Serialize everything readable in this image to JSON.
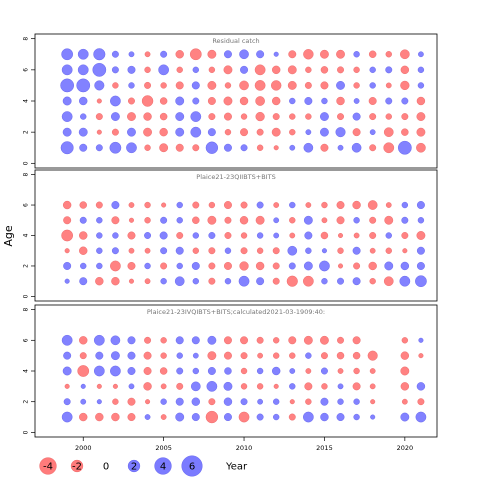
{
  "chart_data": {
    "type": "scatter",
    "ylabel": "Age",
    "xlabel": "Year",
    "xlim": [
      1997,
      2022
    ],
    "x_ticks": [
      2000,
      2005,
      2010,
      2015,
      2020
    ],
    "ylim": [
      -0.3,
      8.3
    ],
    "y_ticks": [
      0,
      2,
      4,
      6,
      8
    ],
    "colors": {
      "positive": "#7b7bff",
      "negative": "#ff7b7b"
    },
    "legend": {
      "values": [
        -4,
        -2,
        0,
        2,
        4,
        6
      ],
      "labels": [
        "-4",
        "-2",
        "0",
        "2",
        "4",
        "6"
      ],
      "title": "Year"
    },
    "panels": [
      {
        "title": "Residual catch",
        "ages": [
          1,
          2,
          3,
          4,
          5,
          6,
          7
        ],
        "years": [
          1999,
          2021
        ],
        "residuals": [
          [
            2.2,
            0.8,
            0.6,
            1.8,
            1.5,
            -0.5,
            -1.0,
            -0.8,
            -0.6,
            2.0,
            0.8,
            0.6,
            -0.5,
            -0.3,
            0.4,
            1.2,
            -0.8,
            0.4,
            1.2,
            -0.6,
            -1.5,
            2.5,
            -1.2
          ],
          [
            1.0,
            1.0,
            -0.3,
            -0.6,
            1.0,
            -1.0,
            -0.9,
            1.0,
            1.5,
            0.8,
            -0.5,
            -0.8,
            -0.6,
            -1.0,
            -0.5,
            0.4,
            1.0,
            1.3,
            -0.8,
            0.4,
            -1.2,
            -0.7,
            -1.0
          ],
          [
            1.5,
            0.5,
            -0.6,
            1.0,
            -1.0,
            -0.9,
            -0.7,
            1.0,
            1.5,
            -0.6,
            -0.8,
            -0.5,
            -1.1,
            -0.6,
            -0.5,
            -0.5,
            1.0,
            -0.6,
            0.8,
            -0.6,
            -0.5,
            -0.6,
            -1.0
          ],
          [
            1.0,
            0.9,
            -0.3,
            1.5,
            -0.6,
            -1.7,
            -0.7,
            1.0,
            0.6,
            -0.8,
            -1.0,
            -0.9,
            -1.2,
            -0.9,
            0.5,
            0.8,
            0.5,
            -0.9,
            0.4,
            -0.8,
            0.6,
            0.6,
            -0.9
          ],
          [
            2.5,
            2.5,
            1.3,
            -0.5,
            0.5,
            -0.6,
            -0.5,
            -0.8,
            0.8,
            -1.0,
            -0.5,
            -1.2,
            -1.5,
            -1.4,
            -1.0,
            -0.6,
            -0.8,
            1.0,
            -0.5,
            0.5,
            -0.4,
            -1.1,
            0.5
          ],
          [
            1.5,
            1.5,
            2.5,
            0.6,
            0.8,
            -0.5,
            1.5,
            -0.5,
            0.5,
            -0.5,
            -1.0,
            0.8,
            -1.5,
            -0.9,
            -1.0,
            -0.5,
            -0.7,
            -0.6,
            -0.5,
            0.5,
            0.6,
            -0.9,
            0.5
          ],
          [
            1.8,
            1.5,
            1.9,
            0.6,
            0.4,
            -0.4,
            0.6,
            -0.9,
            -1.8,
            -1.0,
            0.8,
            1.2,
            0.8,
            0.3,
            -0.8,
            -1.4,
            -1.0,
            -1.0,
            0.5,
            -0.7,
            -0.5,
            -1.2,
            0.4
          ]
        ]
      },
      {
        "title": "Plaice21-23QIIBTS+BITS",
        "ages": [
          1,
          2,
          3,
          4,
          5,
          6
        ],
        "years": [
          1999,
          2021
        ],
        "residuals": [
          [
            0.3,
            0.8,
            -0.9,
            -0.9,
            -0.3,
            -0.4,
            0.5,
            1.2,
            0.5,
            -0.6,
            0.5,
            1.5,
            0.8,
            -0.6,
            -1.6,
            -1.5,
            0.5,
            0.6,
            0.8,
            -0.5,
            -1.2,
            1.5,
            1.8
          ],
          [
            0.8,
            0.5,
            0.5,
            -1.5,
            -0.8,
            0.5,
            -0.6,
            0.5,
            0.8,
            -0.6,
            -0.8,
            -1.1,
            -0.9,
            -0.6,
            0.6,
            1.0,
            1.5,
            -0.3,
            -0.6,
            -0.9,
            1.0,
            0.9,
            0.8
          ],
          [
            -0.3,
            -0.9,
            0.5,
            0.6,
            -0.4,
            -0.4,
            0.6,
            0.8,
            -0.5,
            -0.6,
            0.5,
            -0.6,
            -0.5,
            -0.6,
            1.2,
            0.5,
            0.3,
            -0.5,
            0.8,
            -0.4,
            -0.5,
            -0.3,
            0.8
          ],
          [
            -1.8,
            -0.9,
            0.5,
            0.5,
            -0.8,
            0.6,
            0.8,
            -0.6,
            0.5,
            0.6,
            -0.6,
            -0.5,
            0.5,
            0.4,
            -0.4,
            0.8,
            -0.7,
            -0.3,
            -0.4,
            -0.6,
            0.5,
            -0.6,
            -1.0
          ],
          [
            -0.8,
            0.6,
            0.5,
            -0.8,
            -0.3,
            -0.5,
            0.6,
            0.5,
            -0.7,
            -1.0,
            -0.6,
            -0.9,
            -1.0,
            0.4,
            -0.5,
            1.0,
            -0.4,
            -0.8,
            0.5,
            -0.6,
            -1.0,
            0.6,
            0.5
          ],
          [
            -0.9,
            -0.7,
            -0.6,
            0.8,
            -0.4,
            -0.5,
            -0.3,
            0.5,
            -0.6,
            -0.5,
            -0.8,
            -0.6,
            0.6,
            -0.4,
            0.5,
            -0.4,
            -0.5,
            -0.8,
            -0.9,
            -1.2,
            -0.4,
            0.5,
            0.8
          ]
        ]
      },
      {
        "title": "Plaice21-23IVQIBTS+BITS;calculated2021-03-1909:40:",
        "ages": [
          1,
          2,
          3,
          4,
          5,
          6
        ],
        "years": [
          1999,
          2021
        ],
        "residuals": [
          [
            1.5,
            -0.9,
            -0.9,
            -0.9,
            -0.8,
            0.4,
            -0.4,
            1.0,
            0.8,
            -2.0,
            0.8,
            -1.5,
            0.6,
            0.5,
            -0.6,
            1.5,
            0.9,
            0.8,
            0.5,
            0.3,
            null,
            1.0,
            1.5
          ],
          [
            0.6,
            0.4,
            0.3,
            -0.5,
            -0.8,
            -0.3,
            0.5,
            0.8,
            0.9,
            -0.6,
            0.9,
            0.6,
            0.4,
            0.5,
            -0.3,
            -0.5,
            0.8,
            0.5,
            0.5,
            -0.3,
            null,
            -0.4,
            -0.6
          ],
          [
            -0.3,
            0.3,
            -0.3,
            -0.3,
            0.4,
            -0.9,
            -0.4,
            -0.6,
            1.2,
            1.5,
            1.0,
            -0.5,
            -0.5,
            -0.3,
            0.5,
            -0.8,
            -0.5,
            0.4,
            -0.8,
            -0.4,
            null,
            -0.9,
            0.9
          ],
          [
            1.0,
            -1.8,
            1.5,
            1.5,
            0.8,
            -0.8,
            -0.7,
            0.6,
            0.5,
            0.8,
            0.7,
            -0.5,
            0.5,
            0.9,
            0.4,
            -0.4,
            0.6,
            -0.4,
            -0.5,
            -0.4,
            null,
            -1.0,
            null
          ],
          [
            0.8,
            -0.6,
            0.8,
            1.0,
            0.8,
            -0.8,
            -0.5,
            0.5,
            0.4,
            -1.0,
            -0.8,
            -0.6,
            -0.4,
            -0.5,
            -0.5,
            0.5,
            -0.6,
            -0.7,
            -0.7,
            -1.3,
            null,
            -0.9,
            -0.3
          ],
          [
            1.5,
            -0.9,
            1.5,
            1.2,
            0.8,
            -0.6,
            -0.5,
            0.8,
            0.8,
            1.0,
            -0.8,
            -0.8,
            -0.6,
            -0.5,
            -0.8,
            -1.0,
            -1.0,
            -0.6,
            -0.8,
            null,
            null,
            -0.5,
            0.3
          ]
        ]
      }
    ]
  }
}
